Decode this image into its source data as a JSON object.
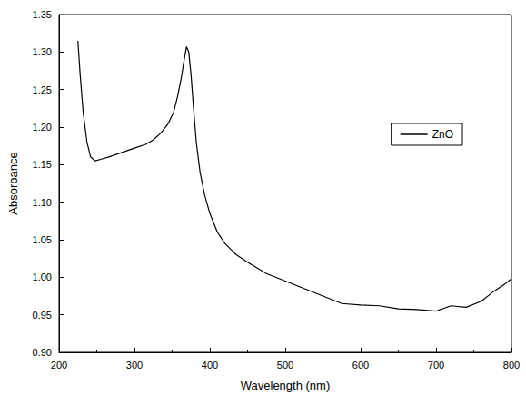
{
  "chart_data": {
    "type": "line",
    "x_label": "Wavelength (nm)",
    "y_label": "Absorbance",
    "series": [
      {
        "name": "ZnO",
        "color": "#000000",
        "x": [
          225,
          228,
          232,
          237,
          242,
          248,
          255,
          265,
          280,
          300,
          315,
          325,
          335,
          345,
          352,
          357,
          362,
          366,
          369,
          372,
          375,
          378,
          382,
          387,
          393,
          400,
          410,
          420,
          435,
          450,
          475,
          500,
          525,
          550,
          575,
          600,
          625,
          650,
          675,
          700,
          720,
          740,
          760,
          775,
          790,
          800
        ],
        "values": [
          1.315,
          1.27,
          1.22,
          1.18,
          1.16,
          1.155,
          1.157,
          1.16,
          1.165,
          1.172,
          1.177,
          1.183,
          1.192,
          1.205,
          1.22,
          1.24,
          1.265,
          1.29,
          1.307,
          1.3,
          1.27,
          1.23,
          1.18,
          1.14,
          1.11,
          1.085,
          1.06,
          1.045,
          1.03,
          1.02,
          1.005,
          0.995,
          0.985,
          0.975,
          0.965,
          0.963,
          0.962,
          0.958,
          0.957,
          0.955,
          0.962,
          0.96,
          0.968,
          0.98,
          0.99,
          0.998
        ]
      }
    ],
    "xlim": [
      200,
      800
    ],
    "xticks": [
      200,
      300,
      400,
      500,
      600,
      700,
      800
    ],
    "ylim": [
      0.9,
      1.35
    ],
    "yticks": [
      {
        "value": 0.9,
        "label": "0.90"
      },
      0.95,
      {
        "value": 1.0,
        "label": "1.00"
      },
      1.05,
      {
        "value": 1.1,
        "label": "1.10"
      },
      1.15,
      {
        "value": 1.2,
        "label": "1.20"
      },
      1.25,
      {
        "value": 1.3,
        "label": "1.30"
      },
      1.35
    ],
    "legend": "right",
    "grid": false
  }
}
